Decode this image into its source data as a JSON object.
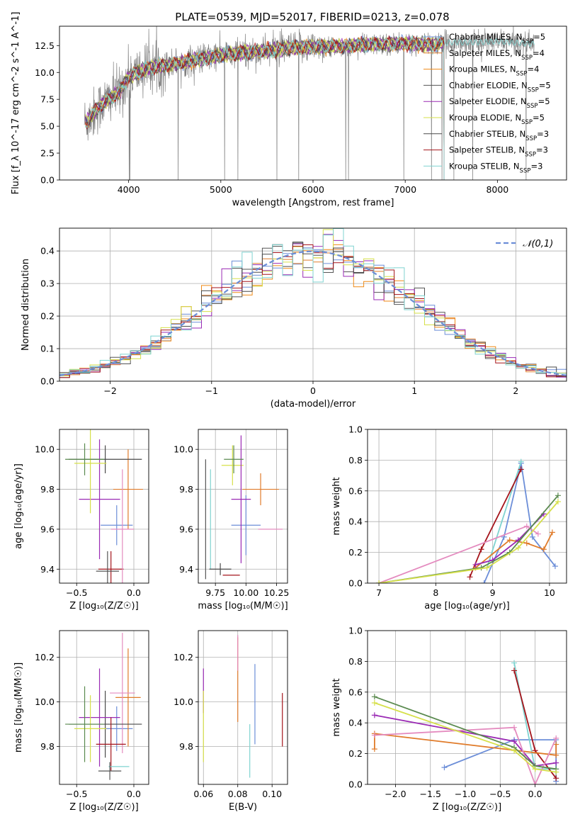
{
  "figure": {
    "title": "PLATE=0539, MJD=52017, FIBERID=0213, z=0.078"
  },
  "palette": [
    "#6c8ed8",
    "#e07b2a",
    "#ef8a17",
    "#555555",
    "#9a2ab4",
    "#d6e04a",
    "#4a4a4a",
    "#a5141b",
    "#7fd3d0",
    "#e48bbf",
    "#5a8a4f"
  ],
  "chart_data": [
    {
      "id": "spectrum",
      "type": "line",
      "title": "PLATE=0539, MJD=52017, FIBERID=0213, z=0.078",
      "xlabel": "wavelength [Angstrom, rest frame]",
      "ylabel": "Flux [f_λ 10^-17 erg cm^-2 s^-1 A^-1]",
      "xlim": [
        3250,
        8750
      ],
      "ylim": [
        0,
        14.3
      ],
      "xticks": [
        4000,
        5000,
        6000,
        7000,
        8000
      ],
      "yticks": [
        0.0,
        2.5,
        5.0,
        7.5,
        10.0,
        12.5
      ],
      "grid": false,
      "legend_position": "top-right",
      "legend": [
        {
          "label": "Chabrier MILES, N",
          "sub": "SSP",
          "post": "=5",
          "color": "#6c8ed8"
        },
        {
          "label": "Salpeter MILES, N",
          "sub": "SSP",
          "post": "=4",
          "color": "#e07b2a"
        },
        {
          "label": "Kroupa MILES, N",
          "sub": "SSP",
          "post": "=4",
          "color": "#ef8a17"
        },
        {
          "label": "Chabrier ELODIE, N",
          "sub": "SSP",
          "post": "=5",
          "color": "#555555"
        },
        {
          "label": "Salpeter ELODIE, N",
          "sub": "SSP",
          "post": "=5",
          "color": "#9a2ab4"
        },
        {
          "label": "Kroupa ELODIE, N",
          "sub": "SSP",
          "post": "=5",
          "color": "#d6e04a"
        },
        {
          "label": "Chabrier STELIB, N",
          "sub": "SSP",
          "post": "=3",
          "color": "#4a4a4a"
        },
        {
          "label": "Salpeter STELIB, N",
          "sub": "SSP",
          "post": "=3",
          "color": "#a5141b"
        },
        {
          "label": "Kroupa STELIB, N",
          "sub": "SSP",
          "post": "=3",
          "color": "#7fd3d0"
        }
      ],
      "data_series": {
        "name": "data",
        "color": "#808080"
      },
      "continuum_knots": {
        "x": [
          3550,
          3700,
          3900,
          4000,
          4200,
          4500,
          4800,
          5000,
          5200,
          5500,
          5800,
          6000,
          6300,
          6600,
          7000,
          7300,
          7500,
          7800,
          8000,
          8300,
          8500
        ],
        "y": [
          5.5,
          7.0,
          8.2,
          9.6,
          10.4,
          10.8,
          11.3,
          11.6,
          11.8,
          12.0,
          12.3,
          12.4,
          12.4,
          12.6,
          12.7,
          12.6,
          12.8,
          12.8,
          12.9,
          12.7,
          12.6
        ]
      },
      "model_range": [
        3530,
        7420
      ],
      "data_range": [
        3520,
        8400
      ]
    },
    {
      "id": "residuals",
      "type": "step",
      "xlabel": "(data-model)/error",
      "ylabel": "Normed distribution",
      "xlim": [
        -2.5,
        2.5
      ],
      "ylim": [
        0,
        0.47
      ],
      "xticks": [
        -2,
        -1,
        0,
        1,
        2
      ],
      "yticks": [
        0.0,
        0.1,
        0.2,
        0.3,
        0.4
      ],
      "grid": true,
      "legend_position": "top-right",
      "legend": [
        {
          "label": "𝒩(0,1)",
          "color": "#6c8ed8",
          "dashed": true
        }
      ],
      "bin_width": 0.1,
      "gaussian": {
        "mu": 0,
        "sigma": 1
      }
    },
    {
      "id": "age_vs_Z",
      "type": "errorbar",
      "xlabel": "Z [log₁₀(Z/Z☉)]",
      "ylabel": "age [log₁₀(age/yr)]",
      "xlim": [
        -0.65,
        0.13
      ],
      "ylim": [
        9.33,
        10.1
      ],
      "xticks": [
        -0.5,
        0.0
      ],
      "xticklabels": [
        "−0.5",
        "0.0"
      ],
      "yticks": [
        9.4,
        9.6,
        9.8,
        10.0
      ],
      "grid": true,
      "points": [
        {
          "x": -0.15,
          "y": 9.62,
          "xerr": 0.14,
          "yerr": 0.1,
          "color": "#6c8ed8"
        },
        {
          "x": -0.05,
          "y": 9.8,
          "xerr": 0.13,
          "yerr": 0.2,
          "color": "#e07b2a"
        },
        {
          "x": -0.25,
          "y": 9.95,
          "xerr": 0.32,
          "yerr": 0.07,
          "color": "#4a4a4a"
        },
        {
          "x": -0.3,
          "y": 9.75,
          "xerr": 0.18,
          "yerr": 0.3,
          "color": "#9a2ab4"
        },
        {
          "x": -0.38,
          "y": 9.93,
          "xerr": 0.14,
          "yerr": 0.25,
          "color": "#d6e04a"
        },
        {
          "x": -0.2,
          "y": 9.4,
          "xerr": 0.11,
          "yerr": 0.09,
          "color": "#a5141b"
        },
        {
          "x": -0.1,
          "y": 9.6,
          "xerr": 0.1,
          "yerr": 0.3,
          "color": "#e48bbf"
        },
        {
          "x": -0.43,
          "y": 9.95,
          "xerr": 0.17,
          "yerr": 0.08,
          "color": "#5a8a4f"
        },
        {
          "x": -0.23,
          "y": 9.39,
          "xerr": 0.1,
          "yerr": 0.1,
          "color": "#555555"
        }
      ]
    },
    {
      "id": "age_vs_mass",
      "type": "errorbar",
      "xlabel": "mass [log₁₀(M/M☉)]",
      "ylabel": "",
      "xlim": [
        9.61,
        10.34
      ],
      "ylim": [
        9.33,
        10.1
      ],
      "xticks": [
        9.75,
        10.0,
        10.25
      ],
      "xticklabels": [
        "9.75",
        "10.00",
        "10.25"
      ],
      "yticks": [
        9.4,
        9.6,
        9.8,
        10.0
      ],
      "grid": true,
      "points": [
        {
          "x": 9.67,
          "y": 9.65,
          "xerr": 0.0,
          "yerr": 0.3,
          "color": "#555555"
        },
        {
          "x": 9.71,
          "y": 9.65,
          "xerr": 0.0,
          "yerr": 0.25,
          "color": "#7fd3d0"
        },
        {
          "x": 10.0,
          "y": 9.62,
          "xerr": 0.12,
          "yerr": 0.15,
          "color": "#6c8ed8"
        },
        {
          "x": 10.12,
          "y": 9.8,
          "xerr": 0.15,
          "yerr": 0.08,
          "color": "#e07b2a"
        },
        {
          "x": 9.89,
          "y": 9.92,
          "xerr": 0.09,
          "yerr": 0.1,
          "color": "#d6e04a"
        },
        {
          "x": 9.96,
          "y": 9.75,
          "xerr": 0.08,
          "yerr": 0.32,
          "color": "#9a2ab4"
        },
        {
          "x": 9.9,
          "y": 9.95,
          "xerr": 0.08,
          "yerr": 0.07,
          "color": "#5a8a4f"
        },
        {
          "x": 9.79,
          "y": 9.4,
          "xerr": 0.09,
          "yerr": 0.03,
          "color": "#4a4a4a"
        },
        {
          "x": 9.88,
          "y": 9.37,
          "xerr": 0.07,
          "yerr": 0.0,
          "color": "#a5141b"
        },
        {
          "x": 10.2,
          "y": 9.6,
          "xerr": 0.1,
          "yerr": 0.0,
          "color": "#e48bbf"
        }
      ]
    },
    {
      "id": "weight_vs_age",
      "type": "line",
      "xlabel": "age [log₁₀(age/yr)]",
      "ylabel": "mass weight",
      "xlim": [
        6.8,
        10.3
      ],
      "ylim": [
        0,
        1.0
      ],
      "xticks": [
        7,
        8,
        9,
        10
      ],
      "yticks": [
        0.0,
        0.2,
        0.4,
        0.6,
        0.8,
        1.0
      ],
      "grid": true,
      "series": [
        {
          "color": "#6c8ed8",
          "x": [
            8.85,
            9.2,
            9.5,
            9.7,
            10.1
          ],
          "y": [
            0.0,
            0.3,
            0.78,
            0.3,
            0.11
          ]
        },
        {
          "color": "#7fd3d0",
          "x": [
            8.9,
            9.5
          ],
          "y": [
            0.1,
            0.79
          ]
        },
        {
          "color": "#a5141b",
          "x": [
            8.6,
            8.8,
            9.5
          ],
          "y": [
            0.04,
            0.22,
            0.74
          ]
        },
        {
          "color": "#e07b2a",
          "x": [
            8.7,
            9.3,
            9.6,
            9.9,
            10.05
          ],
          "y": [
            0.1,
            0.28,
            0.26,
            0.22,
            0.33
          ]
        },
        {
          "color": "#9a2ab4",
          "x": [
            8.7,
            9.0,
            9.45,
            9.9
          ],
          "y": [
            0.12,
            0.15,
            0.28,
            0.45
          ]
        },
        {
          "color": "#e48bbf",
          "x": [
            7.0,
            9.6,
            9.8
          ],
          "y": [
            0.0,
            0.37,
            0.32
          ]
        },
        {
          "color": "#5a8a4f",
          "x": [
            7.0,
            8.8,
            9.3,
            10.15
          ],
          "y": [
            0.0,
            0.1,
            0.2,
            0.57
          ]
        },
        {
          "color": "#d6e04a",
          "x": [
            7.0,
            8.9,
            9.45,
            10.15
          ],
          "y": [
            0.0,
            0.1,
            0.23,
            0.53
          ]
        }
      ]
    },
    {
      "id": "mass_vs_Z",
      "type": "errorbar",
      "xlabel": "Z [log₁₀(Z/Z☉)]",
      "ylabel": "mass [log₁₀(M/M☉)]",
      "xlim": [
        -0.65,
        0.13
      ],
      "ylim": [
        9.63,
        10.32
      ],
      "xticks": [
        -0.5,
        0.0
      ],
      "xticklabels": [
        "−0.5",
        "0.0"
      ],
      "yticks": [
        9.8,
        10.0,
        10.2
      ],
      "grid": true,
      "points": [
        {
          "x": -0.15,
          "y": 9.88,
          "xerr": 0.14,
          "yerr": 0.1,
          "color": "#6c8ed8"
        },
        {
          "x": -0.05,
          "y": 10.02,
          "xerr": 0.11,
          "yerr": 0.22,
          "color": "#e07b2a"
        },
        {
          "x": -0.1,
          "y": 10.04,
          "xerr": 0.11,
          "yerr": 0.27,
          "color": "#e48bbf"
        },
        {
          "x": -0.25,
          "y": 9.9,
          "xerr": 0.32,
          "yerr": 0.15,
          "color": "#4a4a4a"
        },
        {
          "x": -0.3,
          "y": 9.93,
          "xerr": 0.18,
          "yerr": 0.22,
          "color": "#9a2ab4"
        },
        {
          "x": -0.38,
          "y": 9.88,
          "xerr": 0.14,
          "yerr": 0.15,
          "color": "#d6e04a"
        },
        {
          "x": -0.2,
          "y": 9.81,
          "xerr": 0.13,
          "yerr": 0.12,
          "color": "#a5141b"
        },
        {
          "x": -0.43,
          "y": 9.9,
          "xerr": 0.17,
          "yerr": 0.17,
          "color": "#5a8a4f"
        },
        {
          "x": -0.13,
          "y": 9.71,
          "xerr": 0.09,
          "yerr": 0.0,
          "color": "#7fd3d0"
        },
        {
          "x": -0.21,
          "y": 9.69,
          "xerr": 0.1,
          "yerr": 0.04,
          "color": "#555555"
        }
      ]
    },
    {
      "id": "mass_vs_ebv",
      "type": "errorbar",
      "xlabel": "E(B-V)",
      "ylabel": "",
      "xlim": [
        0.057,
        0.109
      ],
      "ylim": [
        9.63,
        10.32
      ],
      "xticks": [
        0.06,
        0.08,
        0.1
      ],
      "xticklabels": [
        "0.06",
        "0.08",
        "0.10"
      ],
      "yticks": [
        9.8,
        10.0,
        10.2
      ],
      "grid": true,
      "points": [
        {
          "x": 0.06,
          "y": 10.05,
          "xerr": 0,
          "yerr": 0.1,
          "color": "#9a2ab4"
        },
        {
          "x": 0.06,
          "y": 9.89,
          "xerr": 0,
          "yerr": 0.16,
          "color": "#d6e04a"
        },
        {
          "x": 0.08,
          "y": 10.1,
          "xerr": 0,
          "yerr": 0.19,
          "color": "#e07b2a"
        },
        {
          "x": 0.08,
          "y": 10.22,
          "xerr": 0,
          "yerr": 0.08,
          "color": "#e48bbf"
        },
        {
          "x": 0.087,
          "y": 9.78,
          "xerr": 0,
          "yerr": 0.12,
          "color": "#7fd3d0"
        },
        {
          "x": 0.09,
          "y": 9.99,
          "xerr": 0,
          "yerr": 0.18,
          "color": "#6c8ed8"
        },
        {
          "x": 0.106,
          "y": 9.92,
          "xerr": 0,
          "yerr": 0.12,
          "color": "#a5141b"
        }
      ]
    },
    {
      "id": "weight_vs_Z",
      "type": "line",
      "xlabel": "Z [log₁₀(Z/Z☉)]",
      "ylabel": "mass weight",
      "xlim": [
        -2.4,
        0.45
      ],
      "ylim": [
        0,
        1.0
      ],
      "xticks": [
        -2.0,
        -1.5,
        -1.0,
        -0.5,
        0.0
      ],
      "xticklabels": [
        "−2.0",
        "−1.5",
        "−1.0",
        "−0.5",
        "0.0"
      ],
      "yticks": [
        0.0,
        0.2,
        0.4,
        0.6,
        0.8,
        1.0
      ],
      "grid": true,
      "series": [
        {
          "color": "#6c8ed8",
          "x": [
            -1.3,
            -0.3,
            0.3,
            0.3
          ],
          "y": [
            0.11,
            0.29,
            0.29,
            0.02
          ]
        },
        {
          "color": "#7fd3d0",
          "x": [
            -0.3,
            0.0,
            0.3
          ],
          "y": [
            0.79,
            0.1,
            0.1
          ]
        },
        {
          "color": "#a5141b",
          "x": [
            -0.3,
            0.0,
            0.3
          ],
          "y": [
            0.74,
            0.22,
            0.04
          ]
        },
        {
          "color": "#e07b2a",
          "x": [
            -2.3,
            -2.3,
            0.3,
            0.3
          ],
          "y": [
            0.23,
            0.33,
            0.19,
            0.26
          ]
        },
        {
          "color": "#9a2ab4",
          "x": [
            -2.3,
            -0.3,
            0.0,
            0.3
          ],
          "y": [
            0.45,
            0.28,
            0.12,
            0.14
          ]
        },
        {
          "color": "#e48bbf",
          "x": [
            -2.3,
            -0.3,
            0.0,
            0.3
          ],
          "y": [
            0.32,
            0.37,
            0.0,
            0.3
          ]
        },
        {
          "color": "#5a8a4f",
          "x": [
            -2.3,
            -0.3,
            0.0,
            0.3
          ],
          "y": [
            0.57,
            0.24,
            0.12,
            0.1
          ]
        },
        {
          "color": "#d6e04a",
          "x": [
            -2.3,
            -0.3,
            0.0,
            0.3
          ],
          "y": [
            0.53,
            0.22,
            0.1,
            0.08
          ]
        }
      ]
    }
  ]
}
